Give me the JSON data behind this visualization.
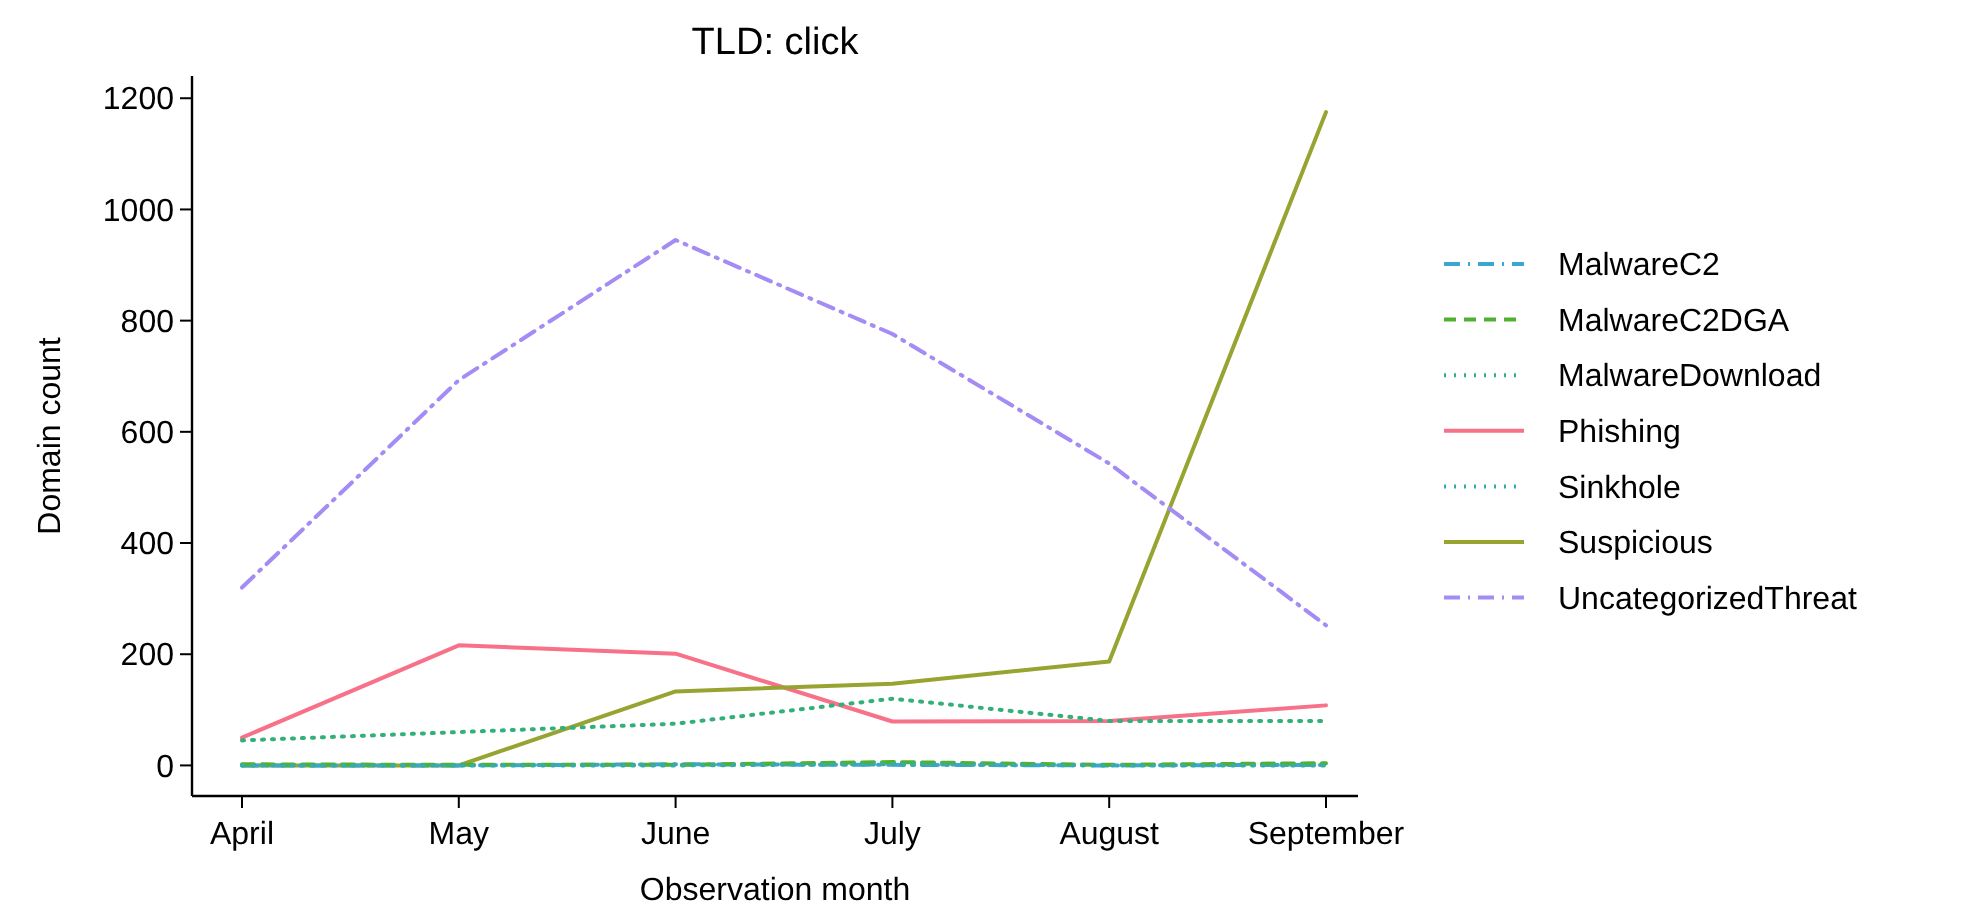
{
  "chart_data": {
    "type": "line",
    "title": "TLD: click",
    "xlabel": "Observation month",
    "ylabel": "Domain count",
    "categories": [
      "April",
      "May",
      "June",
      "July",
      "August",
      "September"
    ],
    "ylim": [
      -55,
      1240
    ],
    "yticks": [
      0,
      200,
      400,
      600,
      800,
      1000,
      1200
    ],
    "grid": false,
    "legend": "right",
    "series": [
      {
        "name": "MalwareC2",
        "color": "#39a7d0",
        "line_style": "dashdot",
        "values": [
          0,
          0,
          2,
          1,
          0,
          1
        ]
      },
      {
        "name": "MalwareC2DGA",
        "color": "#50b131",
        "line_style": "dashed",
        "values": [
          2,
          1,
          1,
          6,
          1,
          4
        ]
      },
      {
        "name": "MalwareDownload",
        "color": "#33b07a",
        "line_style": "dotted",
        "values": [
          45,
          60,
          75,
          120,
          80,
          80
        ]
      },
      {
        "name": "Phishing",
        "color": "#f77189",
        "line_style": "solid",
        "values": [
          50,
          216,
          201,
          79,
          80,
          108
        ]
      },
      {
        "name": "Sinkhole",
        "color": "#36ada4",
        "line_style": "dotted",
        "values": [
          0,
          0,
          0,
          2,
          0,
          0
        ]
      },
      {
        "name": "Suspicious",
        "color": "#97a431",
        "line_style": "solid",
        "values": [
          0,
          0,
          133,
          147,
          187,
          1175
        ]
      },
      {
        "name": "UncategorizedThreat",
        "color": "#a48cf4",
        "line_style": "dashdot",
        "values": [
          320,
          693,
          945,
          776,
          543,
          252
        ]
      }
    ]
  }
}
